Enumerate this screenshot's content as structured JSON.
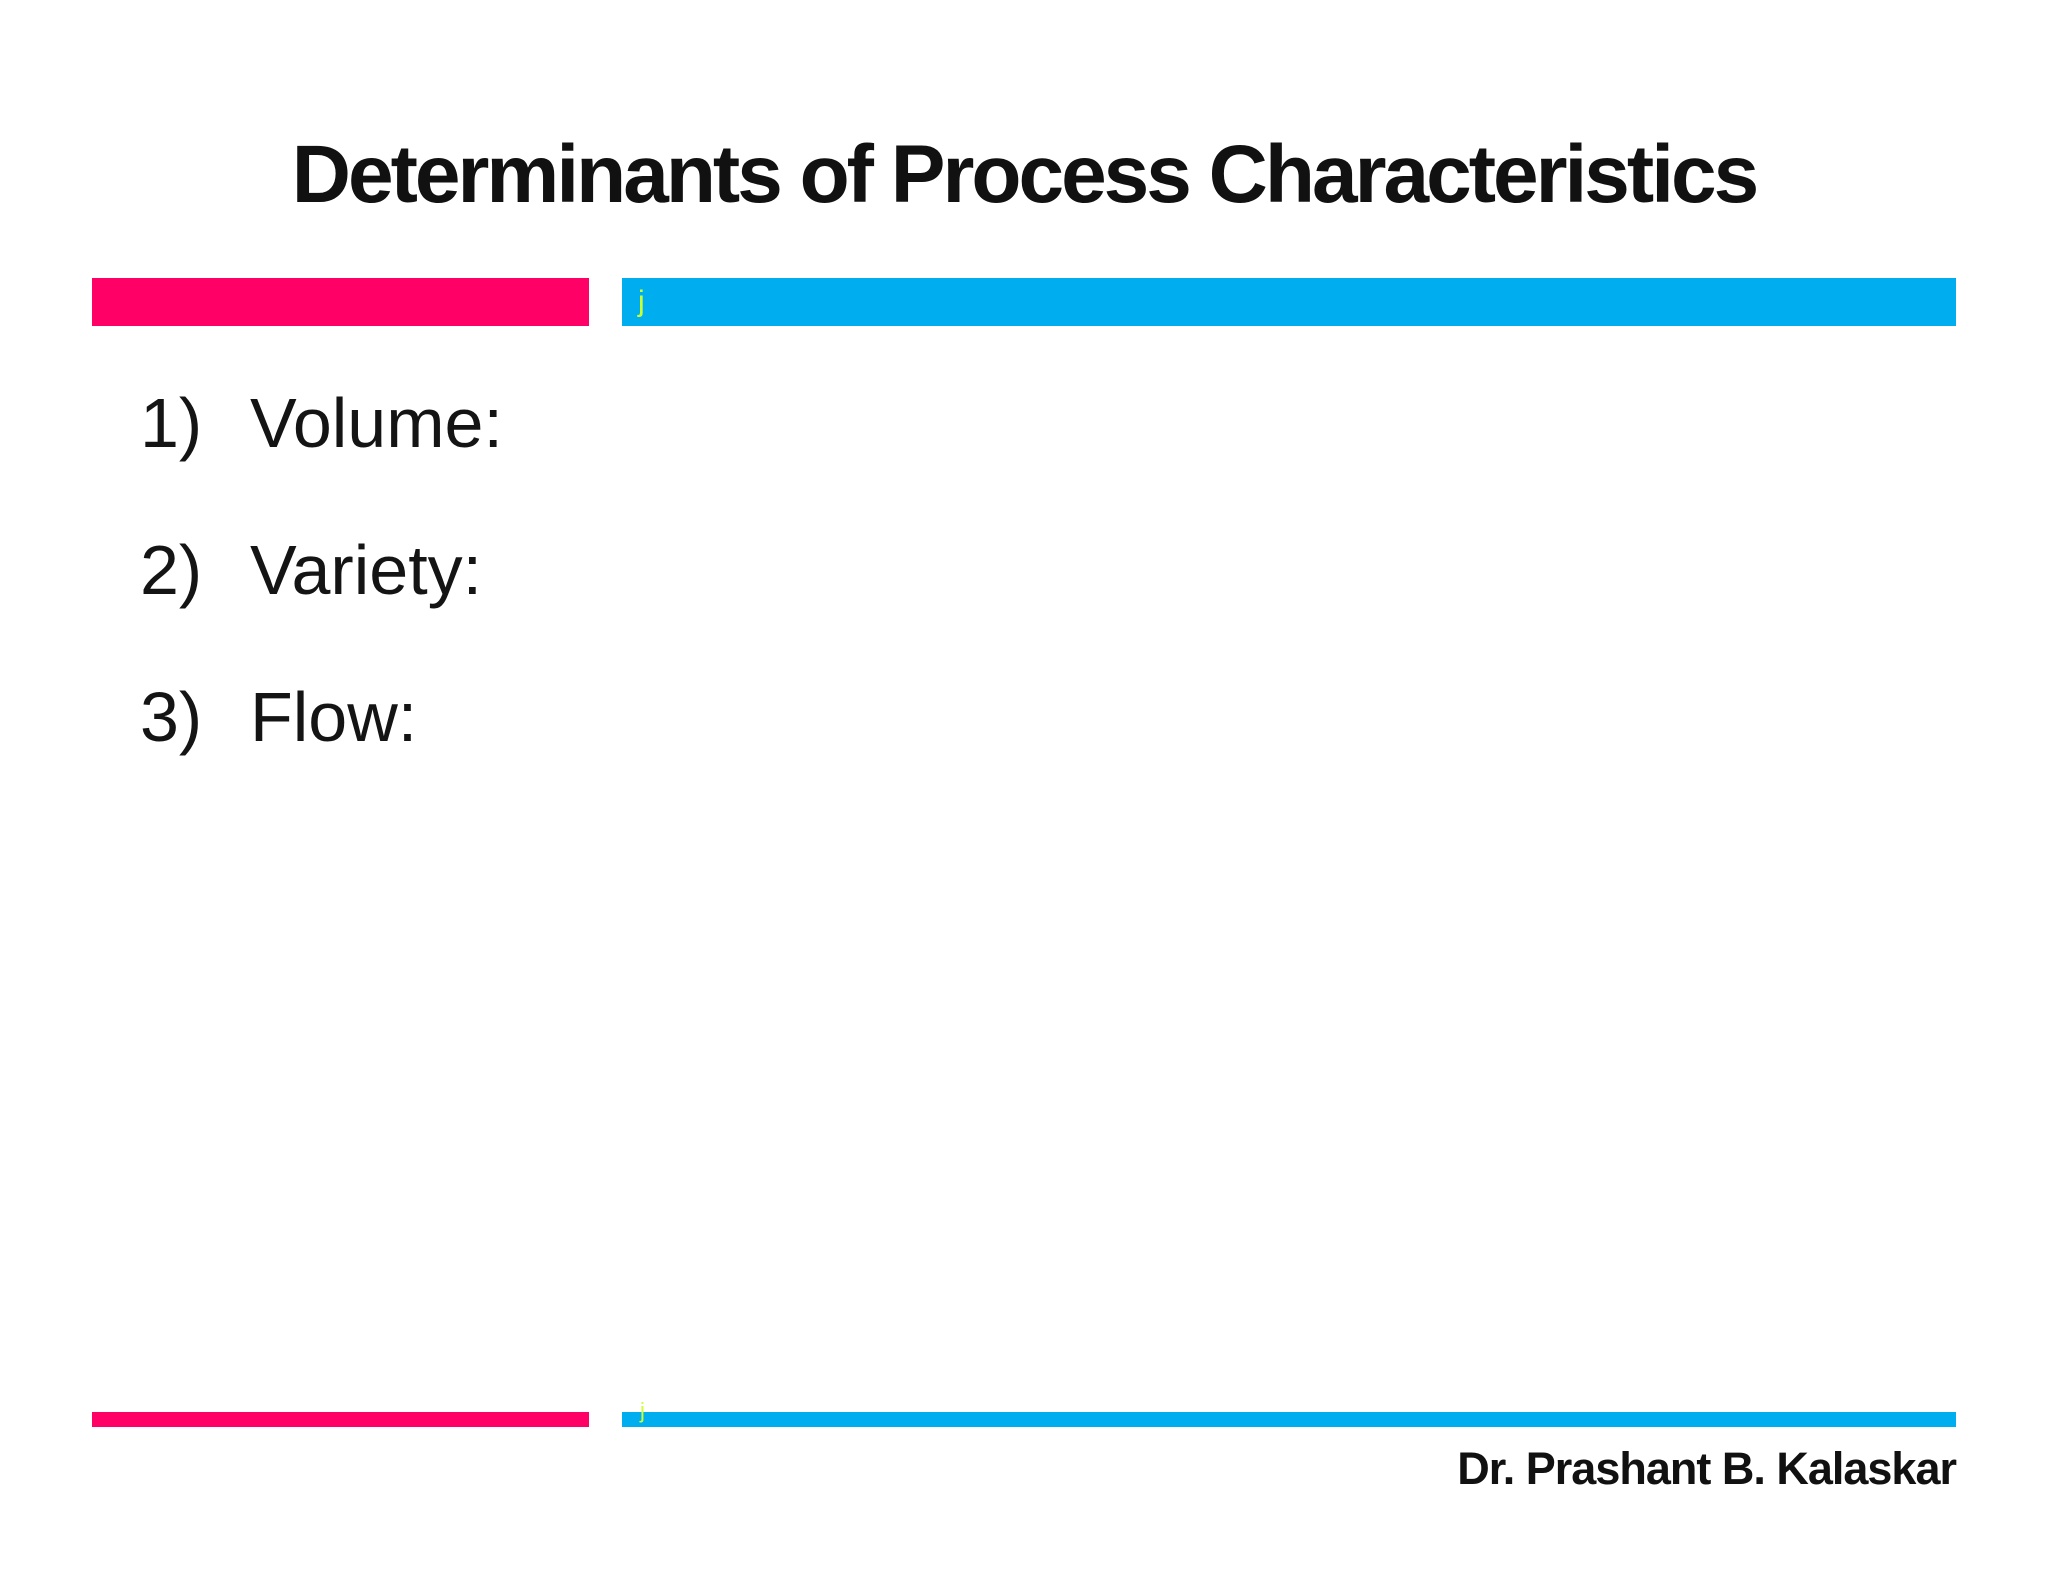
{
  "slide": {
    "title": "Determinants of Process Characteristics",
    "accent_colors": {
      "pink": "#ff0066",
      "cyan": "#00aeef",
      "list_marker_yellow": "#ccff33"
    },
    "divider_top": {
      "j_label": "j"
    },
    "divider_bottom": {
      "j_label": "j"
    },
    "list": {
      "items": [
        {
          "number": "1)",
          "label": "Volume:"
        },
        {
          "number": "2)",
          "label": "Variety:"
        },
        {
          "number": "3)",
          "label": "Flow:"
        }
      ]
    },
    "footer": {
      "author": "Dr. Prashant B. Kalaskar"
    }
  }
}
